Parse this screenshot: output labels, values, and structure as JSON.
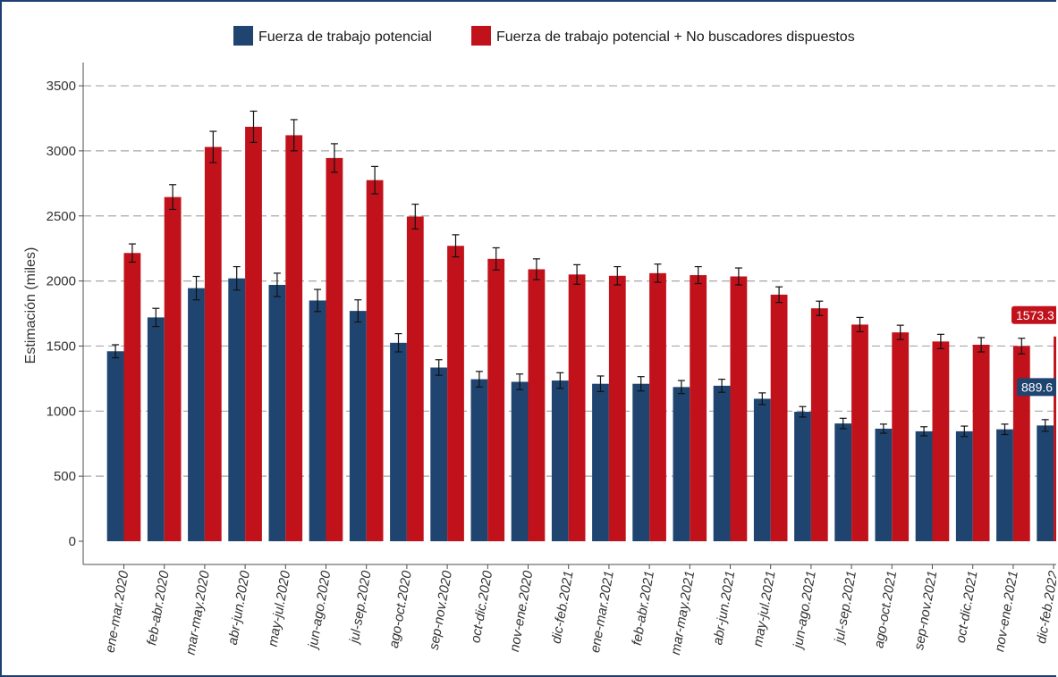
{
  "colors": {
    "series1": "#1f4470",
    "series2": "#c1121c",
    "grid": "#a6a6a6",
    "axis": "#4d4d4d",
    "frame": "#1f3f73"
  },
  "chart_data": {
    "type": "bar",
    "title": "",
    "xlabel": "",
    "ylabel": "Estimación (miles)",
    "ylim": [
      0,
      3600
    ],
    "yticks": [
      0,
      500,
      1000,
      1500,
      2000,
      2500,
      3000,
      3500
    ],
    "grid": "horizontal dashed",
    "legend_position": "top",
    "categories": [
      "ene-mar.2020",
      "feb-abr.2020",
      "mar-may.2020",
      "abr-jun.2020",
      "may-jul.2020",
      "jun-ago.2020",
      "jul-sep.2020",
      "ago-oct.2020",
      "sep-nov.2020",
      "oct-dic.2020",
      "nov-ene.2020",
      "dic-feb.2021",
      "ene-mar.2021",
      "feb-abr.2021",
      "mar-may.2021",
      "abr-jun.2021",
      "may-jul.2021",
      "jun-ago.2021",
      "jul-sep.2021",
      "ago-oct.2021",
      "sep-nov.2021",
      "oct-dic.2021",
      "nov-ene.2021",
      "dic-feb.2022"
    ],
    "series": [
      {
        "name": "Fuerza de trabajo potencial",
        "values": [
          1460,
          1720,
          1945,
          2020,
          1970,
          1850,
          1770,
          1525,
          1335,
          1245,
          1225,
          1235,
          1210,
          1210,
          1185,
          1195,
          1095,
          995,
          905,
          865,
          845,
          845,
          860,
          889.6
        ],
        "error": [
          50,
          70,
          90,
          90,
          90,
          85,
          85,
          70,
          60,
          60,
          60,
          60,
          60,
          55,
          50,
          50,
          45,
          40,
          40,
          35,
          35,
          40,
          40,
          45
        ]
      },
      {
        "name": "Fuerza de trabajo potencial + No buscadores dispuestos",
        "values": [
          2215,
          2645,
          3030,
          3185,
          3120,
          2945,
          2775,
          2495,
          2270,
          2170,
          2090,
          2050,
          2040,
          2060,
          2045,
          2035,
          1895,
          1790,
          1665,
          1605,
          1535,
          1510,
          1500,
          1573.3
        ],
        "error": [
          70,
          95,
          120,
          120,
          120,
          110,
          105,
          95,
          85,
          85,
          80,
          75,
          70,
          70,
          65,
          65,
          60,
          55,
          55,
          55,
          55,
          55,
          60,
          65
        ]
      }
    ],
    "annotations": [
      {
        "series": 1,
        "category": "dic-feb.2022",
        "text": "1573.3"
      },
      {
        "series": 0,
        "category": "dic-feb.2022",
        "text": "889.6"
      }
    ]
  }
}
